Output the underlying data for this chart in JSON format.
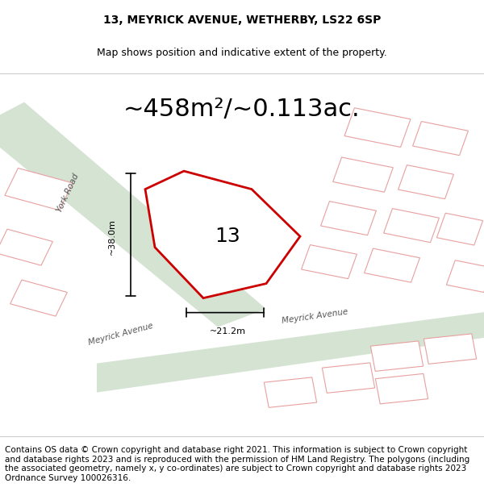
{
  "title_line1": "13, MEYRICK AVENUE, WETHERBY, LS22 6SP",
  "title_line2": "Map shows position and indicative extent of the property.",
  "area_text": "~458m²/~0.113ac.",
  "property_number": "13",
  "dim_vertical": "~38.0m",
  "dim_horizontal": "~21.2m",
  "footer_text": "Contains OS data © Crown copyright and database right 2021. This information is subject to Crown copyright and database rights 2023 and is reproduced with the permission of HM Land Registry. The polygons (including the associated geometry, namely x, y co-ordinates) are subject to Crown copyright and database rights 2023 Ordnance Survey 100026316.",
  "bg_color": "#ffffff",
  "map_bg": "#f5f5f5",
  "road_fill_color": "#dce8dc",
  "property_outline_color": "#cc0000",
  "property_fill_color": "#ffffff",
  "other_outlines_color": "#e8a0a0",
  "road_label1": "York Road",
  "road_label2_a": "Meyrick Avenue",
  "road_label2_b": "Meyrick Avenue",
  "title_fontsize": 10,
  "area_fontsize": 22,
  "footer_fontsize": 7.5
}
